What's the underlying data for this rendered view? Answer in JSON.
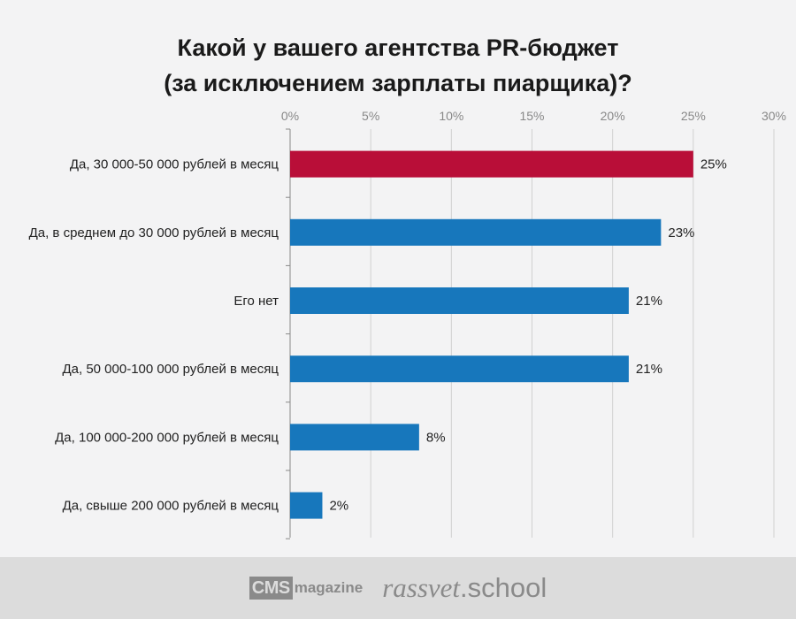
{
  "title": {
    "line1": "Какой у вашего агентства PR-бюджет",
    "line2": "(за исключением зарплаты пиарщика)?"
  },
  "chart_data": {
    "type": "bar",
    "orientation": "horizontal",
    "categories": [
      "Да, 30 000-50 000 рублей в месяц",
      "Да, в среднем до 30 000 рублей в месяц",
      "Его нет",
      "Да, 50 000-100 000 рублей в месяц",
      "Да, 100 000-200 000 рублей в месяц",
      "Да, свыше 200 000 рублей в месяц"
    ],
    "values": [
      25,
      23,
      21,
      21,
      8,
      2
    ],
    "value_labels": [
      "25%",
      "23%",
      "21%",
      "21%",
      "8%",
      "2%"
    ],
    "xlim": [
      0,
      30
    ],
    "x_ticks": [
      0,
      5,
      10,
      15,
      20,
      25,
      30
    ],
    "x_tick_labels": [
      "0%",
      "5%",
      "10%",
      "15%",
      "20%",
      "25%",
      "30%"
    ],
    "x_axis_position": "top",
    "grid": true,
    "highlight_index": 0,
    "colors": {
      "highlight": "#b90e38",
      "default": "#1777bc",
      "grid": "#d0d0d0",
      "axis": "#888888",
      "text": "#222222"
    }
  },
  "footer": {
    "cms_box": "CMS",
    "cms_text": "magazine",
    "rassvet_italic": "rassvet",
    "rassvet_plain": ".school"
  }
}
